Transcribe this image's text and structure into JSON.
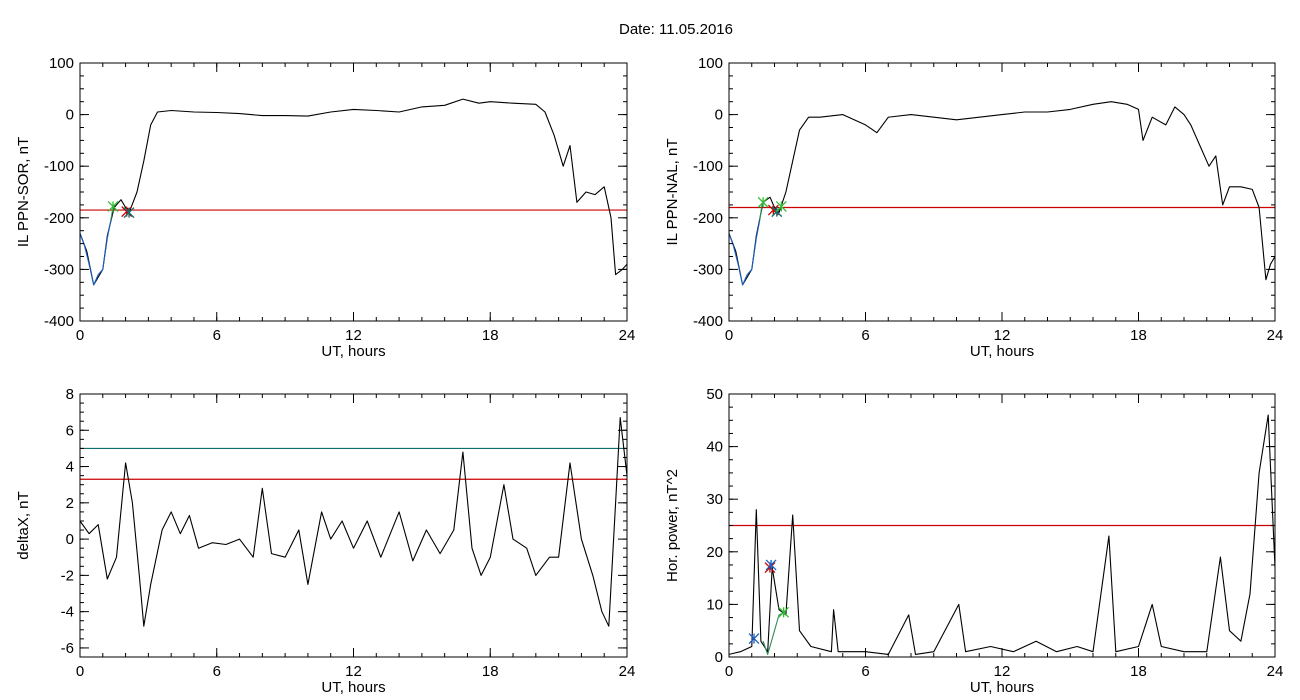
{
  "figure": {
    "date_title": "Date:  11.05.2016"
  },
  "chart_data": [
    {
      "id": "top-left",
      "type": "line",
      "xlabel": "UT, hours",
      "ylabel": "IL PPN-SOR, nT",
      "xlim": [
        0,
        24
      ],
      "ylim": [
        -400,
        100
      ],
      "xticks": [
        0,
        6,
        12,
        18,
        24
      ],
      "yticks": [
        100,
        0,
        -100,
        -200,
        -300,
        -400
      ],
      "grid": false,
      "threshold_lines": [
        {
          "y": -185,
          "color": "#cc0000"
        }
      ],
      "series": [
        {
          "color": "#000000",
          "points": [
            [
              0,
              -230
            ],
            [
              0.3,
              -265
            ],
            [
              0.6,
              -330
            ],
            [
              1.0,
              -300
            ],
            [
              1.2,
              -235
            ],
            [
              1.5,
              -180
            ],
            [
              1.8,
              -165
            ],
            [
              2.0,
              -180
            ],
            [
              2.2,
              -185
            ],
            [
              2.5,
              -150
            ],
            [
              2.8,
              -90
            ],
            [
              3.1,
              -20
            ],
            [
              3.4,
              5
            ],
            [
              4,
              8
            ],
            [
              5,
              5
            ],
            [
              6,
              4
            ],
            [
              7,
              2
            ],
            [
              8,
              -2
            ],
            [
              9,
              -2
            ],
            [
              10,
              -3
            ],
            [
              11,
              5
            ],
            [
              12,
              10
            ],
            [
              13,
              8
            ],
            [
              14,
              5
            ],
            [
              15,
              15
            ],
            [
              16,
              18
            ],
            [
              16.8,
              30
            ],
            [
              17.5,
              22
            ],
            [
              18,
              25
            ],
            [
              19,
              22
            ],
            [
              20,
              20
            ],
            [
              20.4,
              5
            ],
            [
              20.8,
              -40
            ],
            [
              21.2,
              -100
            ],
            [
              21.5,
              -60
            ],
            [
              21.8,
              -170
            ],
            [
              22.2,
              -150
            ],
            [
              22.6,
              -155
            ],
            [
              23.0,
              -140
            ],
            [
              23.3,
              -200
            ],
            [
              23.5,
              -310
            ],
            [
              23.8,
              -300
            ],
            [
              24,
              -290
            ]
          ]
        },
        {
          "color": "#1a5fc4",
          "points": [
            [
              0,
              -230
            ],
            [
              0.2,
              -255
            ],
            [
              0.4,
              -290
            ],
            [
              0.6,
              -330
            ],
            [
              0.8,
              -310
            ],
            [
              1.0,
              -300
            ],
            [
              1.2,
              -240
            ],
            [
              1.35,
              -205
            ]
          ]
        },
        {
          "color": "#2e8b57",
          "points": [
            [
              1.35,
              -205
            ],
            [
              1.45,
              -180
            ],
            [
              1.55,
              -175
            ]
          ]
        }
      ],
      "markers": [
        {
          "x": 1.45,
          "y": -178,
          "color": "#33bb33"
        },
        {
          "x": 2.05,
          "y": -188,
          "color": "#cc0000"
        },
        {
          "x": 2.15,
          "y": -190,
          "color": "#0f6f6f"
        }
      ]
    },
    {
      "id": "top-right",
      "type": "line",
      "xlabel": "UT, hours",
      "ylabel": "IL PPN-NAL, nT",
      "xlim": [
        0,
        24
      ],
      "ylim": [
        -400,
        100
      ],
      "xticks": [
        0,
        6,
        12,
        18,
        24
      ],
      "yticks": [
        100,
        0,
        -100,
        -200,
        -300,
        -400
      ],
      "grid": false,
      "threshold_lines": [
        {
          "y": -180,
          "color": "#cc0000"
        }
      ],
      "series": [
        {
          "color": "#000000",
          "points": [
            [
              0,
              -230
            ],
            [
              0.3,
              -265
            ],
            [
              0.6,
              -330
            ],
            [
              1.0,
              -300
            ],
            [
              1.2,
              -235
            ],
            [
              1.5,
              -170
            ],
            [
              1.8,
              -160
            ],
            [
              2.0,
              -180
            ],
            [
              2.2,
              -190
            ],
            [
              2.5,
              -150
            ],
            [
              2.8,
              -90
            ],
            [
              3.1,
              -30
            ],
            [
              3.5,
              -5
            ],
            [
              4,
              -5
            ],
            [
              5,
              0
            ],
            [
              6,
              -20
            ],
            [
              6.5,
              -35
            ],
            [
              7,
              -5
            ],
            [
              8,
              0
            ],
            [
              9,
              -5
            ],
            [
              10,
              -10
            ],
            [
              11,
              -5
            ],
            [
              12,
              0
            ],
            [
              13,
              5
            ],
            [
              14,
              5
            ],
            [
              15,
              10
            ],
            [
              16,
              20
            ],
            [
              16.8,
              25
            ],
            [
              17.5,
              20
            ],
            [
              18,
              10
            ],
            [
              18.2,
              -50
            ],
            [
              18.6,
              -5
            ],
            [
              19.2,
              -20
            ],
            [
              19.6,
              15
            ],
            [
              20,
              0
            ],
            [
              20.3,
              -20
            ],
            [
              20.7,
              -60
            ],
            [
              21.1,
              -100
            ],
            [
              21.4,
              -80
            ],
            [
              21.7,
              -175
            ],
            [
              22.0,
              -140
            ],
            [
              22.5,
              -140
            ],
            [
              23.0,
              -145
            ],
            [
              23.3,
              -180
            ],
            [
              23.6,
              -320
            ],
            [
              23.8,
              -290
            ],
            [
              24,
              -275
            ]
          ]
        },
        {
          "color": "#1a5fc4",
          "points": [
            [
              0,
              -230
            ],
            [
              0.2,
              -255
            ],
            [
              0.4,
              -290
            ],
            [
              0.6,
              -330
            ],
            [
              0.8,
              -310
            ],
            [
              1.0,
              -300
            ],
            [
              1.2,
              -240
            ],
            [
              1.35,
              -205
            ]
          ]
        },
        {
          "color": "#2e8b57",
          "points": [
            [
              1.35,
              -205
            ],
            [
              1.45,
              -175
            ],
            [
              1.55,
              -170
            ]
          ]
        }
      ],
      "markers": [
        {
          "x": 1.5,
          "y": -170,
          "color": "#33bb33"
        },
        {
          "x": 1.95,
          "y": -185,
          "color": "#cc0000"
        },
        {
          "x": 2.1,
          "y": -188,
          "color": "#0f6f6f"
        },
        {
          "x": 2.3,
          "y": -178,
          "color": "#33bb33"
        }
      ]
    },
    {
      "id": "bottom-left",
      "type": "line",
      "xlabel": "UT, hours",
      "ylabel": "deltaX, nT",
      "xlim": [
        0,
        24
      ],
      "ylim": [
        -6.5,
        8
      ],
      "xticks": [
        0,
        6,
        12,
        18,
        24
      ],
      "yticks": [
        8,
        6,
        4,
        2,
        0,
        -2,
        -4,
        -6
      ],
      "grid": false,
      "threshold_lines": [
        {
          "y": 5.0,
          "color": "#0f6f6f"
        },
        {
          "y": 3.3,
          "color": "#cc0000"
        }
      ],
      "series": [
        {
          "color": "#000000",
          "points": [
            [
              0,
              1.0
            ],
            [
              0.4,
              0.3
            ],
            [
              0.8,
              0.8
            ],
            [
              1.2,
              -2.2
            ],
            [
              1.6,
              -1.0
            ],
            [
              2.0,
              4.2
            ],
            [
              2.3,
              2.0
            ],
            [
              2.6,
              -2.0
            ],
            [
              2.8,
              -4.8
            ],
            [
              3.1,
              -2.5
            ],
            [
              3.6,
              0.5
            ],
            [
              4.0,
              1.5
            ],
            [
              4.4,
              0.3
            ],
            [
              4.8,
              1.3
            ],
            [
              5.2,
              -0.5
            ],
            [
              5.8,
              -0.2
            ],
            [
              6.4,
              -0.3
            ],
            [
              7.0,
              0
            ],
            [
              7.6,
              -1.0
            ],
            [
              8.0,
              2.8
            ],
            [
              8.4,
              -0.8
            ],
            [
              9.0,
              -1.0
            ],
            [
              9.6,
              0.5
            ],
            [
              10.0,
              -2.5
            ],
            [
              10.6,
              1.5
            ],
            [
              11.0,
              0.0
            ],
            [
              11.5,
              1.0
            ],
            [
              12.0,
              -0.5
            ],
            [
              12.6,
              1.0
            ],
            [
              13.2,
              -1.0
            ],
            [
              14.0,
              1.5
            ],
            [
              14.6,
              -1.2
            ],
            [
              15.2,
              0.5
            ],
            [
              15.8,
              -0.8
            ],
            [
              16.4,
              0.5
            ],
            [
              16.8,
              4.8
            ],
            [
              17.2,
              -0.5
            ],
            [
              17.6,
              -2.0
            ],
            [
              18.0,
              -1.0
            ],
            [
              18.6,
              3.0
            ],
            [
              19.0,
              0.0
            ],
            [
              19.6,
              -0.5
            ],
            [
              20.0,
              -2.0
            ],
            [
              20.6,
              -1.0
            ],
            [
              21.0,
              -1.0
            ],
            [
              21.5,
              4.2
            ],
            [
              22.0,
              0.0
            ],
            [
              22.5,
              -2.0
            ],
            [
              22.9,
              -4.0
            ],
            [
              23.2,
              -4.8
            ],
            [
              23.5,
              2.0
            ],
            [
              23.7,
              6.7
            ],
            [
              24.0,
              3.5
            ]
          ]
        }
      ],
      "markers": []
    },
    {
      "id": "bottom-right",
      "type": "line",
      "xlabel": "UT, hours",
      "ylabel": "Hor. power, nT^2",
      "xlim": [
        0,
        24
      ],
      "ylim": [
        0,
        50
      ],
      "xticks": [
        0,
        6,
        12,
        18,
        24
      ],
      "yticks": [
        50,
        40,
        30,
        20,
        10,
        0
      ],
      "grid": false,
      "threshold_lines": [
        {
          "y": 25,
          "color": "#cc0000"
        }
      ],
      "series": [
        {
          "color": "#000000",
          "points": [
            [
              0,
              0.5
            ],
            [
              0.5,
              1.0
            ],
            [
              1.0,
              2.0
            ],
            [
              1.2,
              28.0
            ],
            [
              1.4,
              3.0
            ],
            [
              1.7,
              1.0
            ],
            [
              1.9,
              17.0
            ],
            [
              2.2,
              9.0
            ],
            [
              2.5,
              8.0
            ],
            [
              2.8,
              27.0
            ],
            [
              3.1,
              5.0
            ],
            [
              3.6,
              2.0
            ],
            [
              4.5,
              1.0
            ],
            [
              4.6,
              9.0
            ],
            [
              4.8,
              1.0
            ],
            [
              6.0,
              1.0
            ],
            [
              7.0,
              0.5
            ],
            [
              7.9,
              8.0
            ],
            [
              8.2,
              0.5
            ],
            [
              9.0,
              1.0
            ],
            [
              10.1,
              10.0
            ],
            [
              10.4,
              1.0
            ],
            [
              11.5,
              2.0
            ],
            [
              12.5,
              1.0
            ],
            [
              13.5,
              3.0
            ],
            [
              14.4,
              1.0
            ],
            [
              15.3,
              2.0
            ],
            [
              16.0,
              1.0
            ],
            [
              16.7,
              23.0
            ],
            [
              17.0,
              1.0
            ],
            [
              18.0,
              2.0
            ],
            [
              18.6,
              10.0
            ],
            [
              19.0,
              2.0
            ],
            [
              20.0,
              1.0
            ],
            [
              21.0,
              1.0
            ],
            [
              21.6,
              19.0
            ],
            [
              22.0,
              5.0
            ],
            [
              22.5,
              3.0
            ],
            [
              22.9,
              12.0
            ],
            [
              23.3,
              35.0
            ],
            [
              23.7,
              46.0
            ],
            [
              24.0,
              17.0
            ]
          ]
        },
        {
          "color": "#2e8b57",
          "points": [
            [
              1.5,
              3.0
            ],
            [
              1.7,
              0.5
            ],
            [
              2.2,
              8.0
            ],
            [
              2.5,
              8.5
            ]
          ]
        }
      ],
      "markers": [
        {
          "x": 1.1,
          "y": 3.5,
          "color": "#1a5fc4"
        },
        {
          "x": 1.8,
          "y": 17.0,
          "color": "#cc0000"
        },
        {
          "x": 1.85,
          "y": 17.5,
          "color": "#1a5fc4"
        },
        {
          "x": 2.4,
          "y": 8.5,
          "color": "#33bb33"
        }
      ]
    }
  ]
}
